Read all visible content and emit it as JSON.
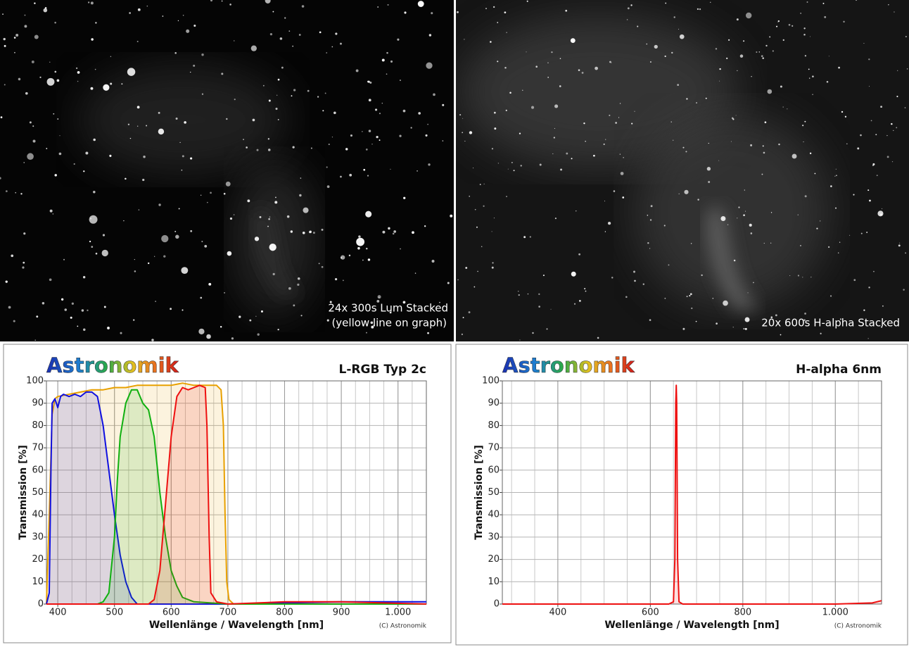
{
  "photos": [
    {
      "caption": [
        "24x 300s Lum Stacked",
        "(yellow line on graph)"
      ]
    },
    {
      "caption": [
        "20x 600s H-alpha Stacked"
      ]
    }
  ],
  "chart_data": [
    {
      "type": "line",
      "brand": "Astronomik",
      "title": "L-RGB Typ 2c",
      "x_label": "Wellenlänge / Wavelength [nm]",
      "y_label": "Transmission [%]",
      "credit": "(C) Astronomik",
      "xlim": [
        380,
        1050
      ],
      "ylim": [
        0,
        100
      ],
      "xticks": [
        400,
        500,
        600,
        700,
        800,
        900,
        {
          "value": 1000,
          "label": "1.000"
        }
      ],
      "yticks": [
        0,
        10,
        20,
        30,
        40,
        50,
        60,
        70,
        80,
        90,
        100
      ],
      "xminor": 25,
      "grid": true,
      "series": [
        {
          "color": "#e8a000",
          "x": [
            380,
            385,
            390,
            395,
            400,
            420,
            440,
            460,
            480,
            500,
            520,
            540,
            560,
            580,
            600,
            620,
            640,
            660,
            680,
            688,
            692,
            695,
            698,
            702,
            710,
            1050
          ],
          "values": [
            0,
            40,
            85,
            92,
            93,
            94,
            95,
            96,
            96,
            97,
            97,
            98,
            98,
            98,
            98,
            99,
            98,
            98,
            98,
            96,
            80,
            40,
            10,
            2,
            0,
            0
          ]
        },
        {
          "color": "#1010e0",
          "x": [
            380,
            385,
            388,
            390,
            395,
            400,
            405,
            410,
            420,
            430,
            440,
            450,
            460,
            470,
            480,
            490,
            500,
            510,
            520,
            530,
            540,
            560,
            700,
            900,
            1050
          ],
          "values": [
            0,
            5,
            60,
            90,
            92,
            88,
            93,
            94,
            93,
            94,
            93,
            95,
            95,
            93,
            80,
            60,
            40,
            22,
            10,
            3,
            0,
            0,
            0,
            1,
            1
          ]
        },
        {
          "color": "#10b010",
          "x": [
            380,
            470,
            480,
            490,
            500,
            505,
            510,
            520,
            530,
            540,
            550,
            560,
            570,
            580,
            590,
            600,
            610,
            620,
            640,
            700,
            1050
          ],
          "values": [
            0,
            0,
            1,
            5,
            30,
            55,
            75,
            90,
            96,
            96,
            90,
            87,
            75,
            50,
            30,
            15,
            8,
            3,
            1,
            0,
            0
          ]
        },
        {
          "color": "#ee1010",
          "x": [
            380,
            560,
            570,
            580,
            590,
            600,
            610,
            620,
            630,
            640,
            650,
            660,
            663,
            667,
            670,
            680,
            700,
            800,
            900,
            1050
          ],
          "values": [
            0,
            0,
            2,
            15,
            45,
            75,
            93,
            97,
            96,
            97,
            98,
            97,
            80,
            30,
            5,
            1,
            0,
            1,
            1,
            0
          ]
        }
      ]
    },
    {
      "type": "line",
      "brand": "Astronomik",
      "title": "H-alpha 6nm",
      "x_label": "Wellenlänge / Wavelength [nm]",
      "y_label": "Transmission [%]",
      "credit": "(C) Astronomik",
      "xlim": [
        280,
        1100
      ],
      "ylim": [
        0,
        100
      ],
      "xticks": [
        400,
        600,
        800,
        {
          "value": 1000,
          "label": "1.000"
        }
      ],
      "yticks": [
        0,
        10,
        20,
        30,
        40,
        50,
        60,
        70,
        80,
        90,
        100
      ],
      "xminor": 50,
      "grid": true,
      "series": [
        {
          "color": "#ee1010",
          "x": [
            280,
            640,
            650,
            653,
            655,
            656,
            657,
            659,
            662,
            670,
            1000,
            1080,
            1100
          ],
          "values": [
            0,
            0,
            1,
            20,
            90,
            98,
            90,
            20,
            1,
            0,
            0,
            0.5,
            1.5
          ]
        }
      ]
    }
  ]
}
